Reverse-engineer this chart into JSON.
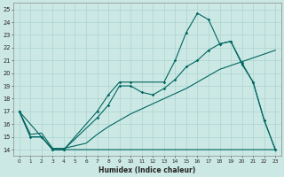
{
  "xlabel": "Humidex (Indice chaleur)",
  "bg_color": "#cce8e4",
  "grid_color": "#aad4d0",
  "line_color": "#006660",
  "xlim": [
    -0.5,
    23.5
  ],
  "ylim": [
    13.5,
    25.5
  ],
  "xticks": [
    0,
    1,
    2,
    3,
    4,
    5,
    6,
    7,
    8,
    9,
    10,
    11,
    12,
    13,
    14,
    15,
    16,
    17,
    18,
    19,
    20,
    21,
    22,
    23
  ],
  "yticks": [
    14,
    15,
    16,
    17,
    18,
    19,
    20,
    21,
    22,
    23,
    24,
    25
  ],
  "line1_x": [
    0,
    1,
    2,
    3,
    4,
    23
  ],
  "line1_y": [
    17,
    15,
    15,
    14,
    14,
    14
  ],
  "line2_x": [
    0,
    1,
    2,
    3,
    4,
    5,
    6,
    7,
    8,
    9,
    10,
    11,
    12,
    13,
    14,
    15,
    16,
    17,
    18,
    19,
    20,
    21,
    22,
    23
  ],
  "line2_y": [
    17,
    15.2,
    15.3,
    14.1,
    14.1,
    14.3,
    14.5,
    15.2,
    15.8,
    16.3,
    16.8,
    17.2,
    17.6,
    18.0,
    18.4,
    18.8,
    19.3,
    19.8,
    20.3,
    20.6,
    20.9,
    21.2,
    21.5,
    21.8
  ],
  "line3_x": [
    0,
    1,
    2,
    3,
    4,
    7,
    8,
    9,
    10,
    11,
    12,
    13,
    14,
    15,
    16,
    17,
    18,
    19,
    20,
    21,
    22,
    23
  ],
  "line3_y": [
    17,
    15,
    15,
    14,
    14,
    16.5,
    17.5,
    19.0,
    19.0,
    18.5,
    18.3,
    18.8,
    19.5,
    20.5,
    21.0,
    21.8,
    22.3,
    22.5,
    20.7,
    19.3,
    16.3,
    14
  ],
  "line4_x": [
    0,
    2,
    3,
    4,
    7,
    8,
    9,
    10,
    13,
    14,
    15,
    16,
    17,
    18,
    19,
    20,
    21,
    22,
    23
  ],
  "line4_y": [
    17,
    15,
    14,
    14,
    17.0,
    18.3,
    19.3,
    19.3,
    19.3,
    21.0,
    23.2,
    24.7,
    24.2,
    22.3,
    22.5,
    20.8,
    19.3,
    16.3,
    14
  ]
}
